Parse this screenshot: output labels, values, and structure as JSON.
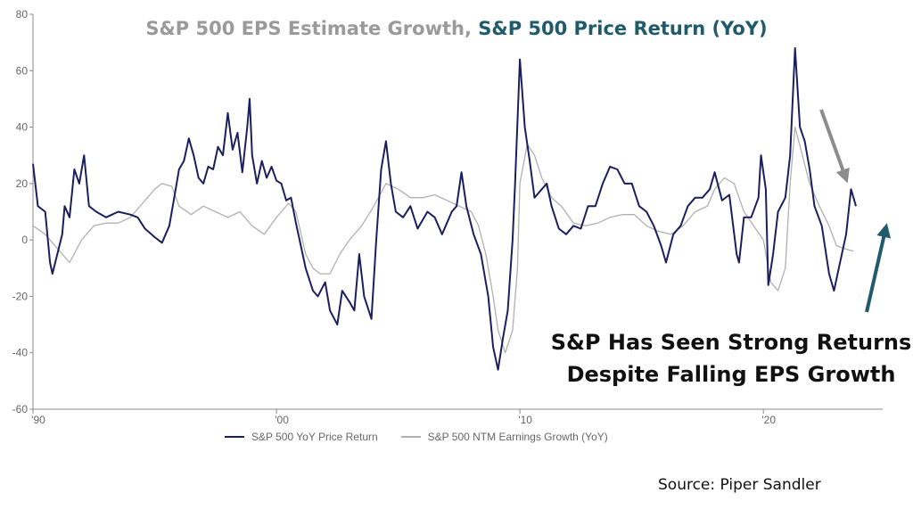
{
  "title": {
    "part1": "S&P 500 EPS Estimate Growth,",
    "part2": "S&P 500 Price Return (YoY)",
    "color1": "#9a9a9a",
    "color2": "#1f5b6b"
  },
  "annotation": {
    "line1": "S&P Has Seen Strong Returns",
    "line2": "Despite Falling EPS Growth"
  },
  "source": "Source: Piper Sandler",
  "chart_data": {
    "type": "line",
    "xlim": [
      1990,
      2024.9
    ],
    "ylim": [
      -60,
      80
    ],
    "yticks": [
      -60,
      -40,
      -20,
      0,
      20,
      40,
      60,
      80
    ],
    "ytick_labels": [
      "-60",
      "-40",
      "-20",
      "0",
      "20",
      "40",
      "60",
      "80"
    ],
    "xticks": [
      1990,
      2000,
      2010,
      2020
    ],
    "xtick_labels": [
      "'90",
      "'00",
      "'10",
      "'20"
    ],
    "grid": false,
    "legend_position": "bottom",
    "series": [
      {
        "name": "S&P 500 YoY Price Return",
        "color": "#1c1f5e",
        "points": [
          [
            1990.0,
            27
          ],
          [
            1990.2,
            12
          ],
          [
            1990.5,
            10
          ],
          [
            1990.7,
            -8
          ],
          [
            1990.8,
            -12
          ],
          [
            1991.0,
            -5
          ],
          [
            1991.2,
            2
          ],
          [
            1991.3,
            12
          ],
          [
            1991.5,
            8
          ],
          [
            1991.7,
            25
          ],
          [
            1991.9,
            20
          ],
          [
            1992.1,
            30
          ],
          [
            1992.3,
            12
          ],
          [
            1992.6,
            10
          ],
          [
            1993.0,
            8
          ],
          [
            1993.5,
            10
          ],
          [
            1994.0,
            9
          ],
          [
            1994.3,
            8
          ],
          [
            1994.6,
            4
          ],
          [
            1995.0,
            1
          ],
          [
            1995.3,
            -1
          ],
          [
            1995.6,
            5
          ],
          [
            1995.8,
            15
          ],
          [
            1996.0,
            25
          ],
          [
            1996.2,
            28
          ],
          [
            1996.4,
            36
          ],
          [
            1996.6,
            30
          ],
          [
            1996.8,
            22
          ],
          [
            1997.0,
            20
          ],
          [
            1997.2,
            26
          ],
          [
            1997.4,
            25
          ],
          [
            1997.6,
            33
          ],
          [
            1997.8,
            30
          ],
          [
            1998.0,
            45
          ],
          [
            1998.2,
            32
          ],
          [
            1998.4,
            38
          ],
          [
            1998.6,
            24
          ],
          [
            1998.8,
            40
          ],
          [
            1998.9,
            50
          ],
          [
            1999.0,
            30
          ],
          [
            1999.2,
            20
          ],
          [
            1999.4,
            28
          ],
          [
            1999.6,
            22
          ],
          [
            1999.8,
            26
          ],
          [
            2000.0,
            21
          ],
          [
            2000.2,
            20
          ],
          [
            2000.4,
            14
          ],
          [
            2000.6,
            15
          ],
          [
            2000.8,
            6
          ],
          [
            2001.0,
            -2
          ],
          [
            2001.2,
            -10
          ],
          [
            2001.5,
            -18
          ],
          [
            2001.7,
            -20
          ],
          [
            2002.0,
            -15
          ],
          [
            2002.2,
            -25
          ],
          [
            2002.5,
            -30
          ],
          [
            2002.7,
            -18
          ],
          [
            2003.0,
            -22
          ],
          [
            2003.2,
            -25
          ],
          [
            2003.4,
            -5
          ],
          [
            2003.6,
            -20
          ],
          [
            2003.9,
            -28
          ],
          [
            2004.1,
            0
          ],
          [
            2004.3,
            25
          ],
          [
            2004.5,
            35
          ],
          [
            2004.7,
            20
          ],
          [
            2004.9,
            10
          ],
          [
            2005.2,
            8
          ],
          [
            2005.5,
            12
          ],
          [
            2005.8,
            4
          ],
          [
            2006.2,
            10
          ],
          [
            2006.5,
            8
          ],
          [
            2006.8,
            2
          ],
          [
            2007.2,
            10
          ],
          [
            2007.4,
            12
          ],
          [
            2007.6,
            24
          ],
          [
            2007.8,
            12
          ],
          [
            2008.1,
            2
          ],
          [
            2008.4,
            -5
          ],
          [
            2008.7,
            -20
          ],
          [
            2008.9,
            -38
          ],
          [
            2009.1,
            -46
          ],
          [
            2009.3,
            -35
          ],
          [
            2009.5,
            -25
          ],
          [
            2009.7,
            0
          ],
          [
            2009.8,
            20
          ],
          [
            2010.0,
            64
          ],
          [
            2010.2,
            40
          ],
          [
            2010.4,
            28
          ],
          [
            2010.6,
            15
          ],
          [
            2010.9,
            18
          ],
          [
            2011.1,
            20
          ],
          [
            2011.3,
            12
          ],
          [
            2011.6,
            4
          ],
          [
            2011.9,
            2
          ],
          [
            2012.2,
            5
          ],
          [
            2012.5,
            4
          ],
          [
            2012.8,
            12
          ],
          [
            2013.1,
            12
          ],
          [
            2013.4,
            20
          ],
          [
            2013.7,
            26
          ],
          [
            2014.0,
            25
          ],
          [
            2014.3,
            20
          ],
          [
            2014.6,
            20
          ],
          [
            2014.9,
            12
          ],
          [
            2015.2,
            10
          ],
          [
            2015.5,
            5
          ],
          [
            2015.8,
            -2
          ],
          [
            2016.0,
            -8
          ],
          [
            2016.3,
            2
          ],
          [
            2016.6,
            5
          ],
          [
            2016.9,
            12
          ],
          [
            2017.2,
            15
          ],
          [
            2017.5,
            15
          ],
          [
            2017.8,
            18
          ],
          [
            2018.0,
            24
          ],
          [
            2018.3,
            14
          ],
          [
            2018.6,
            16
          ],
          [
            2018.9,
            -5
          ],
          [
            2019.0,
            -8
          ],
          [
            2019.2,
            8
          ],
          [
            2019.5,
            8
          ],
          [
            2019.8,
            15
          ],
          [
            2019.9,
            30
          ],
          [
            2020.1,
            18
          ],
          [
            2020.2,
            -16
          ],
          [
            2020.4,
            -5
          ],
          [
            2020.6,
            10
          ],
          [
            2020.9,
            15
          ],
          [
            2021.1,
            30
          ],
          [
            2021.3,
            68
          ],
          [
            2021.5,
            40
          ],
          [
            2021.7,
            35
          ],
          [
            2021.9,
            25
          ],
          [
            2022.1,
            12
          ],
          [
            2022.4,
            5
          ],
          [
            2022.7,
            -12
          ],
          [
            2022.9,
            -18
          ],
          [
            2023.1,
            -10
          ],
          [
            2023.4,
            2
          ],
          [
            2023.6,
            18
          ],
          [
            2023.8,
            12
          ]
        ]
      },
      {
        "name": "S&P 500 NTM Earnings Growth (YoY)",
        "color": "#b0b0b0",
        "points": [
          [
            1990.0,
            5
          ],
          [
            1990.5,
            2
          ],
          [
            1991.0,
            -3
          ],
          [
            1991.5,
            -8
          ],
          [
            1992.0,
            0
          ],
          [
            1992.5,
            5
          ],
          [
            1993.0,
            6
          ],
          [
            1993.5,
            6
          ],
          [
            1994.0,
            8
          ],
          [
            1994.5,
            13
          ],
          [
            1995.0,
            18
          ],
          [
            1995.3,
            20
          ],
          [
            1995.7,
            19
          ],
          [
            1996.0,
            12
          ],
          [
            1996.5,
            9
          ],
          [
            1997.0,
            12
          ],
          [
            1997.5,
            10
          ],
          [
            1998.0,
            8
          ],
          [
            1998.5,
            10
          ],
          [
            1999.0,
            5
          ],
          [
            1999.5,
            2
          ],
          [
            2000.0,
            8
          ],
          [
            2000.5,
            13
          ],
          [
            2000.8,
            10
          ],
          [
            2001.2,
            -5
          ],
          [
            2001.5,
            -10
          ],
          [
            2001.8,
            -12
          ],
          [
            2002.2,
            -12
          ],
          [
            2002.6,
            -5
          ],
          [
            2003.0,
            0
          ],
          [
            2003.5,
            5
          ],
          [
            2004.0,
            12
          ],
          [
            2004.5,
            20
          ],
          [
            2005.0,
            18
          ],
          [
            2005.5,
            15
          ],
          [
            2006.0,
            15
          ],
          [
            2006.5,
            16
          ],
          [
            2007.0,
            14
          ],
          [
            2007.5,
            12
          ],
          [
            2008.0,
            10
          ],
          [
            2008.3,
            5
          ],
          [
            2008.6,
            -5
          ],
          [
            2008.9,
            -20
          ],
          [
            2009.1,
            -32
          ],
          [
            2009.4,
            -40
          ],
          [
            2009.7,
            -32
          ],
          [
            2009.9,
            -10
          ],
          [
            2010.0,
            20
          ],
          [
            2010.3,
            34
          ],
          [
            2010.6,
            30
          ],
          [
            2010.9,
            22
          ],
          [
            2011.3,
            15
          ],
          [
            2011.7,
            12
          ],
          [
            2012.2,
            6
          ],
          [
            2012.7,
            5
          ],
          [
            2013.2,
            6
          ],
          [
            2013.7,
            8
          ],
          [
            2014.2,
            9
          ],
          [
            2014.7,
            9
          ],
          [
            2015.2,
            5
          ],
          [
            2015.7,
            3
          ],
          [
            2016.2,
            2
          ],
          [
            2016.7,
            5
          ],
          [
            2017.2,
            10
          ],
          [
            2017.7,
            12
          ],
          [
            2018.0,
            18
          ],
          [
            2018.4,
            22
          ],
          [
            2018.8,
            20
          ],
          [
            2019.2,
            10
          ],
          [
            2019.6,
            5
          ],
          [
            2020.0,
            0
          ],
          [
            2020.3,
            -15
          ],
          [
            2020.6,
            -18
          ],
          [
            2020.9,
            -10
          ],
          [
            2021.1,
            20
          ],
          [
            2021.3,
            40
          ],
          [
            2021.6,
            30
          ],
          [
            2021.9,
            20
          ],
          [
            2022.3,
            12
          ],
          [
            2022.7,
            5
          ],
          [
            2023.0,
            -2
          ],
          [
            2023.3,
            -3
          ],
          [
            2023.7,
            -4
          ]
        ]
      }
    ]
  }
}
